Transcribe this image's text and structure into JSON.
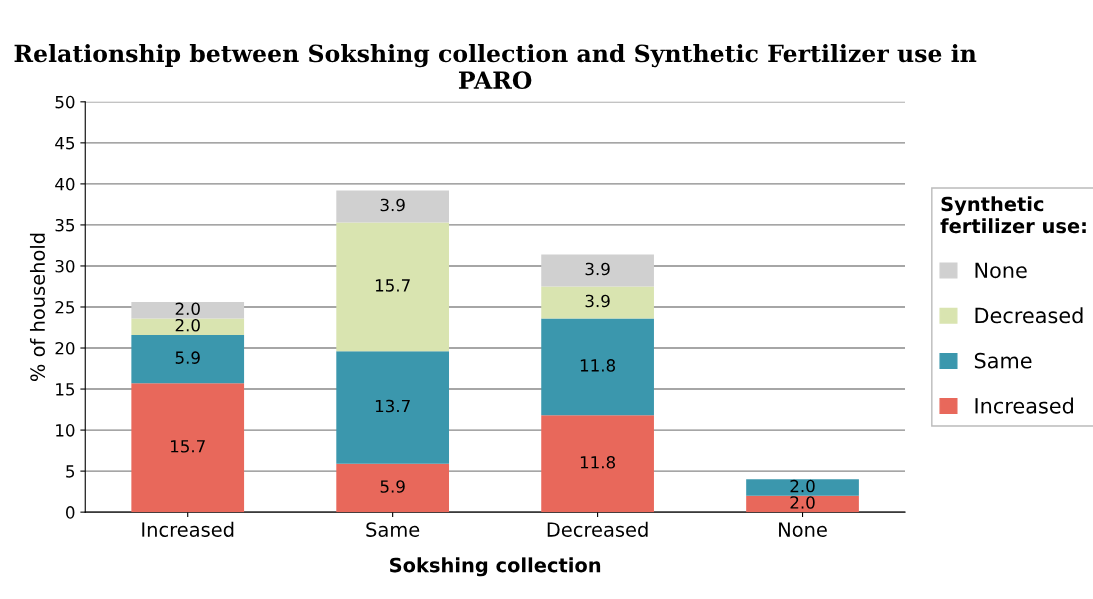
{
  "chart_data": {
    "type": "bar",
    "title": "Relationship between Sokshing collection and Synthetic Fertilizer use in PARO",
    "xlabel": "Sokshing collection",
    "ylabel": "% of household",
    "legend_title": "Synthetic\nfertilizer use:",
    "categories": [
      "Increased",
      "Same",
      "Decreased",
      "None"
    ],
    "stacked": true,
    "series": [
      {
        "name": "Increased",
        "color": "#e8685b",
        "values": [
          15.7,
          5.9,
          11.8,
          2.0
        ],
        "value_labels": [
          "15.7",
          "5.9",
          "11.8",
          "2.0"
        ]
      },
      {
        "name": "Same",
        "color": "#3b97ad",
        "values": [
          5.9,
          13.7,
          11.8,
          2.0
        ],
        "value_labels": [
          "5.9",
          "13.7",
          "11.8",
          "2.0"
        ]
      },
      {
        "name": "Decreased",
        "color": "#d9e4b0",
        "values": [
          2.0,
          15.7,
          3.9,
          null
        ],
        "value_labels": [
          "2.0",
          "15.7",
          "3.9",
          null
        ]
      },
      {
        "name": "None",
        "color": "#d0d0d0",
        "values": [
          2.0,
          3.9,
          3.9,
          null
        ],
        "value_labels": [
          "2.0",
          "3.9",
          "3.9",
          null
        ]
      }
    ],
    "ylim": [
      0,
      50
    ],
    "yticks": [
      0,
      5,
      10,
      15,
      20,
      25,
      30,
      35,
      40,
      45,
      50
    ],
    "grid": "y",
    "legend": "right"
  }
}
